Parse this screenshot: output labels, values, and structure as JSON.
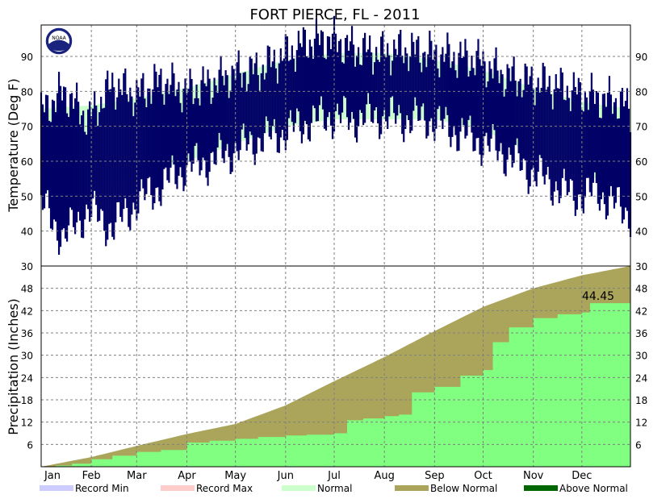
{
  "title": "FORT PIERCE, FL - 2011",
  "colors": {
    "observed_temp": "#000066",
    "normal": "#ccffcc",
    "record_min": "#ccccff",
    "record_max": "#ffcccc",
    "below_normal": "#aaa55a",
    "above_normal": "#006600",
    "observed_precip": "#80ff80",
    "grid": "#808080"
  },
  "logo_text": "NOAA",
  "chart_data": [
    {
      "type": "area",
      "panel": "temperature",
      "ylabel": "Temperature (Deg F)",
      "ylim": [
        30,
        99
      ],
      "yticks": [
        40,
        50,
        60,
        70,
        80,
        90
      ],
      "grid": true,
      "x_unit": "day_of_year_2011",
      "normal_high": {
        "x": [
          1,
          32,
          60,
          91,
          121,
          152,
          182,
          213,
          244,
          274,
          305,
          335,
          365
        ],
        "values": [
          75,
          76,
          78,
          81,
          85,
          89,
          91,
          91,
          89,
          86,
          81,
          77,
          75
        ]
      },
      "normal_low": {
        "x": [
          1,
          32,
          60,
          91,
          121,
          152,
          182,
          213,
          244,
          274,
          305,
          335,
          365
        ],
        "values": [
          51,
          52,
          56,
          60,
          65,
          70,
          72,
          72,
          72,
          69,
          62,
          56,
          53
        ]
      },
      "observed_high": {
        "x": [
          1,
          15,
          30,
          45,
          60,
          75,
          90,
          105,
          120,
          135,
          150,
          165,
          180,
          195,
          210,
          225,
          240,
          255,
          270,
          285,
          300,
          315,
          330,
          345,
          360,
          365
        ],
        "values": [
          74,
          80,
          72,
          82,
          79,
          83,
          80,
          82,
          85,
          86,
          90,
          94,
          95,
          92,
          91,
          92,
          91,
          90,
          89,
          85,
          83,
          82,
          80,
          78,
          77,
          74
        ]
      },
      "observed_low": {
        "x": [
          1,
          15,
          30,
          45,
          60,
          75,
          90,
          105,
          120,
          135,
          150,
          165,
          180,
          195,
          210,
          225,
          240,
          255,
          270,
          285,
          300,
          315,
          330,
          345,
          360,
          365
        ],
        "values": [
          48,
          38,
          46,
          41,
          48,
          53,
          58,
          60,
          63,
          66,
          68,
          71,
          73,
          72,
          73,
          72,
          72,
          69,
          66,
          63,
          58,
          54,
          50,
          51,
          46,
          45
        ]
      }
    },
    {
      "type": "area",
      "panel": "precipitation",
      "ylabel": "Precipitation (Inches)",
      "ylim": [
        0,
        54
      ],
      "yticks": [
        6,
        12,
        18,
        24,
        30,
        36,
        42,
        48
      ],
      "grid": true,
      "x_unit": "day_of_year_2011",
      "months": [
        "Jan",
        "Feb",
        "Mar",
        "Apr",
        "May",
        "Jun",
        "Jul",
        "Aug",
        "Sep",
        "Oct",
        "Nov",
        "Dec"
      ],
      "month_start_days": [
        1,
        32,
        60,
        91,
        121,
        152,
        182,
        213,
        244,
        274,
        305,
        335
      ],
      "normal_cumulative": {
        "x": [
          1,
          32,
          60,
          91,
          121,
          152,
          182,
          213,
          244,
          274,
          305,
          335,
          365
        ],
        "values": [
          0,
          2.6,
          5.6,
          8.8,
          11.5,
          16.5,
          23.0,
          29.5,
          36.5,
          43.0,
          48.0,
          51.5,
          54.0
        ]
      },
      "observed_cumulative": {
        "x": [
          1,
          10,
          20,
          32,
          45,
          60,
          75,
          91,
          105,
          121,
          135,
          152,
          165,
          182,
          190,
          200,
          213,
          222,
          230,
          244,
          260,
          274,
          280,
          290,
          305,
          320,
          335,
          340,
          365
        ],
        "values": [
          0,
          0.3,
          0.8,
          2.0,
          3.0,
          4.0,
          4.5,
          6.5,
          7.0,
          7.5,
          8.0,
          8.4,
          8.6,
          9.0,
          12.5,
          13.0,
          13.6,
          14.0,
          20.0,
          21.5,
          24.5,
          26.0,
          33.5,
          37.5,
          40.0,
          41.0,
          41.5,
          44.0,
          44.45
        ]
      },
      "total_label": "44.45"
    }
  ],
  "legend": [
    {
      "label": "Record Min",
      "color": "#ccccff"
    },
    {
      "label": "Record Max",
      "color": "#ffcccc"
    },
    {
      "label": "Normal",
      "color": "#ccffcc"
    },
    {
      "label": "Below Normal",
      "color": "#aaa55a"
    },
    {
      "label": "Above Normal",
      "color": "#006600"
    }
  ]
}
